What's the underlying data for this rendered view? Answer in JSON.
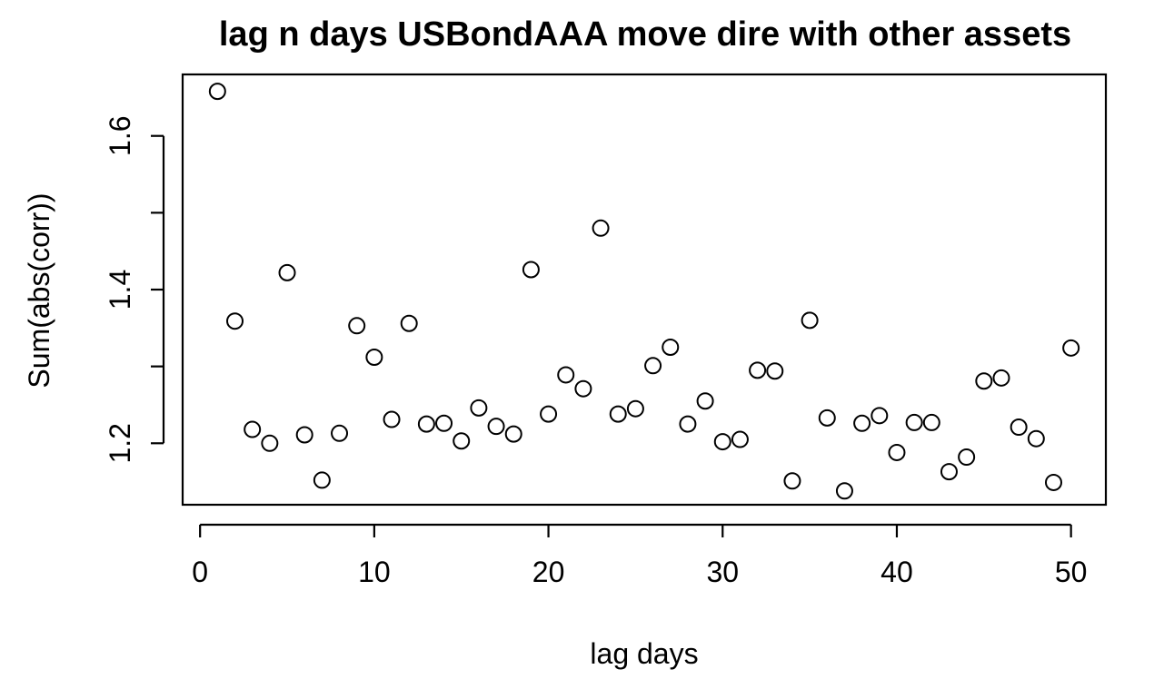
{
  "chart_data": {
    "type": "scatter",
    "title": "lag n days USBondAAA move dire with other assets",
    "xlabel": "lag days",
    "ylabel": "Sum(abs(corr))",
    "xlim": [
      -1,
      52
    ],
    "ylim": [
      1.12,
      1.68
    ],
    "xticks": [
      0,
      10,
      20,
      30,
      40,
      50
    ],
    "xtick_labels": [
      "0",
      "10",
      "20",
      "30",
      "40",
      "50"
    ],
    "yticks": [
      1.2,
      1.3,
      1.4,
      1.5,
      1.6
    ],
    "ytick_labels": [
      "1.2",
      "",
      "1.4",
      "",
      "1.6"
    ],
    "grid": false,
    "marker": "open-circle",
    "series": [
      {
        "x": [
          1,
          2,
          3,
          4,
          5,
          6,
          7,
          8,
          9,
          10,
          11,
          12,
          13,
          14,
          15,
          16,
          17,
          18,
          19,
          20,
          21,
          22,
          23,
          24,
          25,
          26,
          27,
          28,
          29,
          30,
          31,
          32,
          33,
          34,
          35,
          36,
          37,
          38,
          39,
          40,
          41,
          42,
          43,
          44,
          45,
          46,
          47,
          48,
          49,
          50
        ],
        "y": [
          1.658,
          1.359,
          1.218,
          1.2,
          1.422,
          1.211,
          1.152,
          1.213,
          1.353,
          1.312,
          1.231,
          1.356,
          1.225,
          1.226,
          1.203,
          1.246,
          1.222,
          1.212,
          1.426,
          1.238,
          1.289,
          1.271,
          1.48,
          1.238,
          1.245,
          1.301,
          1.325,
          1.225,
          1.255,
          1.202,
          1.205,
          1.295,
          1.294,
          1.151,
          1.36,
          1.233,
          1.138,
          1.226,
          1.236,
          1.188,
          1.227,
          1.227,
          1.163,
          1.182,
          1.281,
          1.285,
          1.221,
          1.206,
          1.149,
          1.324
        ]
      }
    ]
  }
}
